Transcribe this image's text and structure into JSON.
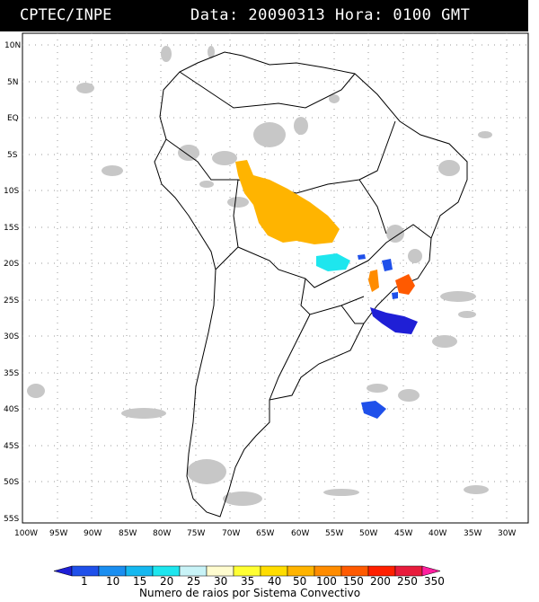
{
  "header": {
    "source": "CPTEC/INPE",
    "datetime": "Data: 20090313 Hora: 0100 GMT"
  },
  "map": {
    "lat_labels": [
      "10N",
      "5N",
      "EQ",
      "5S",
      "10S",
      "15S",
      "20S",
      "25S",
      "30S",
      "35S",
      "40S",
      "45S",
      "50S",
      "55S"
    ],
    "lon_labels": [
      "100W",
      "95W",
      "90W",
      "85W",
      "80W",
      "75W",
      "70W",
      "65W",
      "60W",
      "55W",
      "50W",
      "45W",
      "40W",
      "35W",
      "30W"
    ],
    "lat_range": [
      10,
      -55
    ],
    "lon_range": [
      -100,
      -27
    ]
  },
  "legend": {
    "values": [
      "1",
      "10",
      "15",
      "20",
      "25",
      "30",
      "35",
      "40",
      "50",
      "100",
      "150",
      "200",
      "250",
      "350"
    ],
    "colors": [
      "#1f1fd6",
      "#1f50ea",
      "#1a8ef0",
      "#15b8f0",
      "#1ee6ee",
      "#c8f3f7",
      "#fffccf",
      "#ffff33",
      "#ffdd00",
      "#ffb400",
      "#ff8c00",
      "#ff5a00",
      "#ff2000",
      "#e81c3c",
      "#ff1f9f"
    ],
    "caption": "Numero de raios por Sistema Convectivo"
  }
}
